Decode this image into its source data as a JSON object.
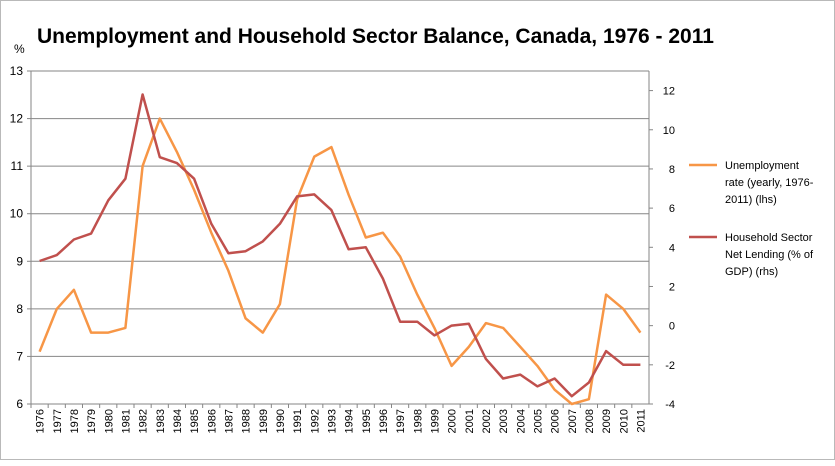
{
  "chart_data": {
    "type": "line",
    "title": "Unemployment and Household Sector Balance, Canada, 1976 - 2011",
    "ylabel_left": "%",
    "categories": [
      "1976",
      "1977",
      "1978",
      "1979",
      "1980",
      "1981",
      "1982",
      "1983",
      "1984",
      "1985",
      "1986",
      "1987",
      "1988",
      "1989",
      "1990",
      "1991",
      "1992",
      "1993",
      "1994",
      "1995",
      "1996",
      "1997",
      "1998",
      "1999",
      "2000",
      "2001",
      "2002",
      "2003",
      "2004",
      "2005",
      "2006",
      "2007",
      "2008",
      "2009",
      "2010",
      "2011"
    ],
    "ylim_left": [
      6,
      13
    ],
    "yticks_left": [
      6,
      7,
      8,
      9,
      10,
      11,
      12,
      13
    ],
    "ylim_right": [
      -4,
      13
    ],
    "yticks_right": [
      -4,
      -2,
      0,
      2,
      4,
      6,
      8,
      10,
      12
    ],
    "grid": true,
    "legend_position": "right",
    "series": [
      {
        "name": "Unemployment rate (yearly, 1976-2011) (lhs)",
        "legend_lines": [
          "Unemployment",
          "rate (yearly, 1976-",
          "2011) (lhs)"
        ],
        "axis": "left",
        "color": "#f79646",
        "values": [
          7.1,
          8.0,
          8.4,
          7.5,
          7.5,
          7.6,
          11.0,
          12.0,
          11.3,
          10.5,
          9.6,
          8.8,
          7.8,
          7.5,
          8.1,
          10.3,
          11.2,
          11.4,
          10.4,
          9.5,
          9.6,
          9.1,
          8.3,
          7.6,
          6.8,
          7.2,
          7.7,
          7.6,
          7.2,
          6.8,
          6.3,
          6.0,
          6.1,
          8.3,
          8.0,
          7.5
        ]
      },
      {
        "name": "Household Sector Net Lending (% of GDP) (rhs)",
        "legend_lines": [
          "Household Sector",
          "Net Lending (% of",
          "GDP) (rhs)"
        ],
        "axis": "right",
        "color": "#c0504d",
        "values": [
          3.3,
          3.6,
          4.4,
          4.7,
          6.4,
          7.5,
          11.8,
          8.6,
          8.3,
          7.5,
          5.2,
          3.7,
          3.8,
          4.3,
          5.2,
          6.6,
          6.7,
          5.9,
          3.9,
          4.0,
          2.4,
          0.2,
          0.2,
          -0.5,
          0.0,
          0.1,
          -1.7,
          -2.7,
          -2.5,
          -3.1,
          -2.7,
          -3.6,
          -2.9,
          -1.3,
          -2.0,
          -2.0
        ]
      }
    ]
  }
}
